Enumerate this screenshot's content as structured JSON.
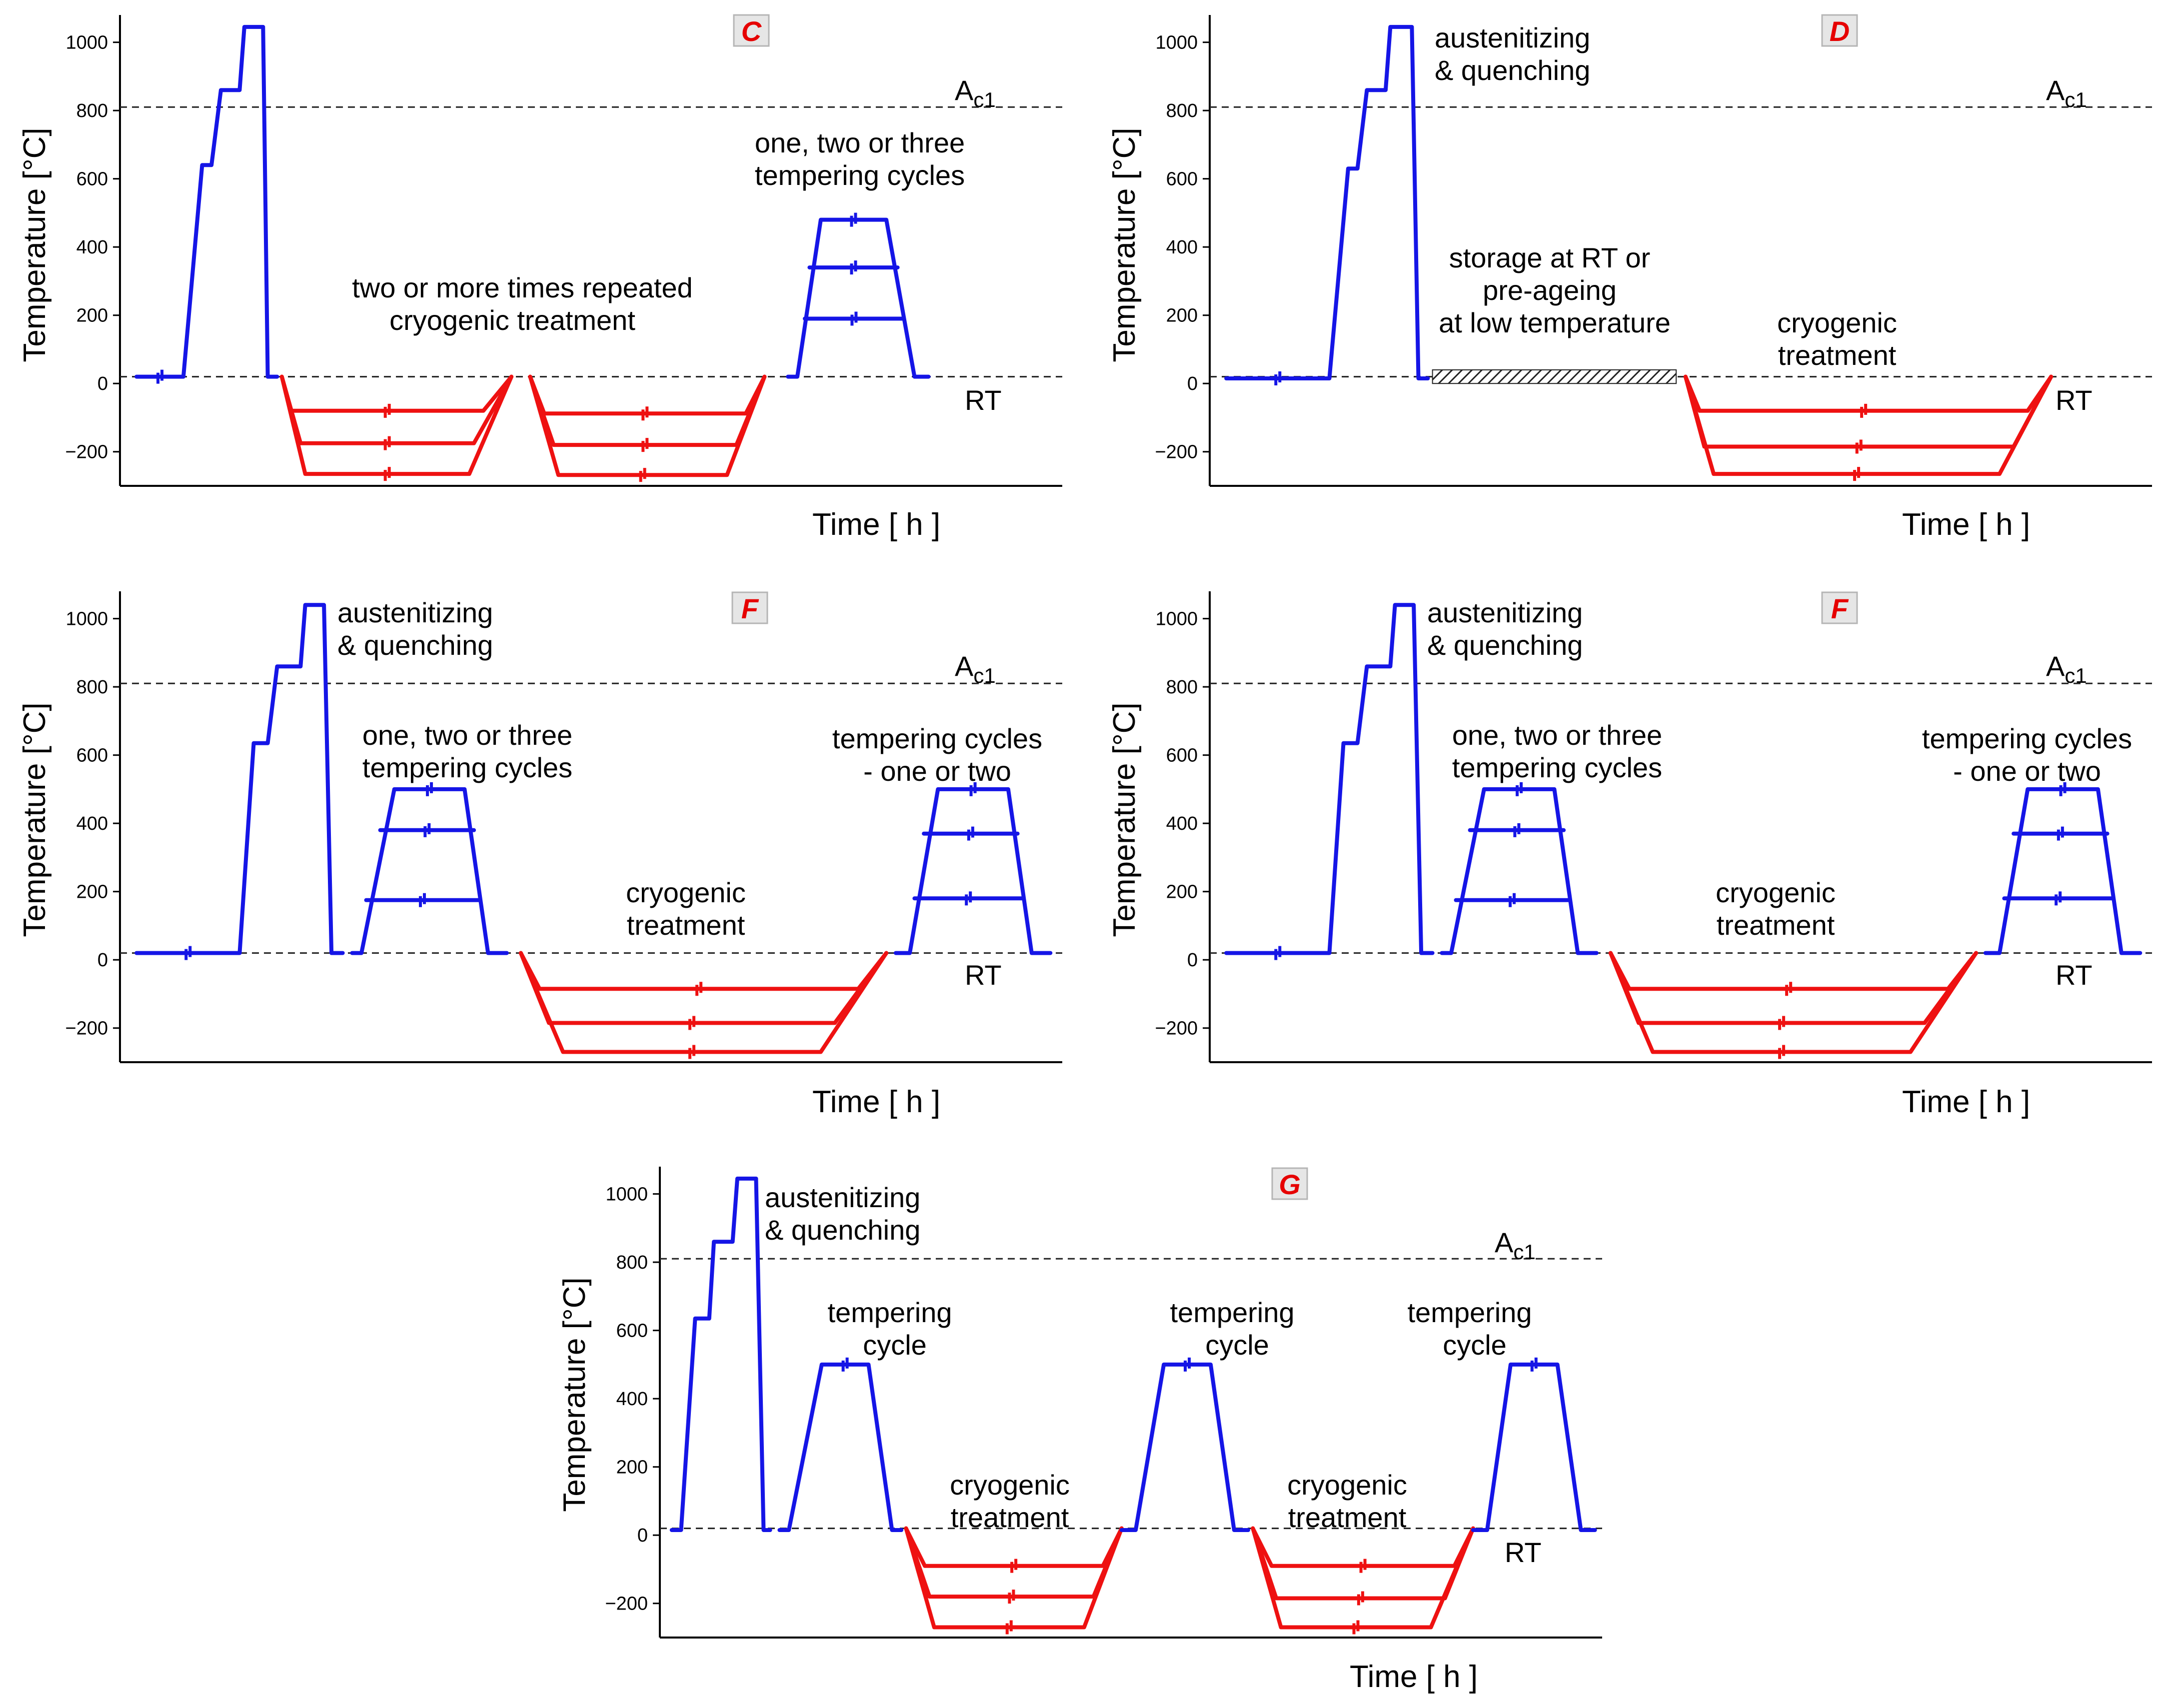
{
  "figure": {
    "colors": {
      "heating": "#1515e6",
      "cryogenic": "#ee1111",
      "reference_line": "#222222",
      "axis": "#000000",
      "badge_fill": "#e6e6e6",
      "badge_text": "#e60000"
    },
    "panels": [
      {
        "id": "C",
        "badge": "C",
        "ylabel": "Temperature   [°C]",
        "xlabel": "Time    [ h ]",
        "ac1_prefix": "A",
        "ac1_sub": "c1",
        "rt_label": "RT",
        "annotations": [
          "one, two or three",
          "tempering cycles",
          "two or more times repeated",
          "cryogenic treatment"
        ]
      },
      {
        "id": "D",
        "badge": "D",
        "ylabel": "Temperature   [°C]",
        "xlabel": "Time    [ h ]",
        "ac1_prefix": "A",
        "ac1_sub": "c1",
        "rt_label": "RT",
        "annotations": [
          "austenitizing",
          "& quenching",
          "storage at RT or",
          "pre-ageing",
          "at low temperature",
          "cryogenic",
          "treatment"
        ]
      },
      {
        "id": "F1",
        "badge": "F",
        "ylabel": "Temperature   [°C]",
        "xlabel": "Time    [ h ]",
        "ac1_prefix": "A",
        "ac1_sub": "c1",
        "rt_label": "RT",
        "annotations": [
          "austenitizing",
          "& quenching",
          "one, two or three",
          "tempering cycles",
          "tempering cycles",
          "- one or two",
          "cryogenic",
          "treatment"
        ]
      },
      {
        "id": "F2",
        "badge": "F",
        "ylabel": "Temperature   [°C]",
        "xlabel": "Time    [ h ]",
        "ac1_prefix": "A",
        "ac1_sub": "c1",
        "rt_label": "RT",
        "annotations": [
          "austenitizing",
          "& quenching",
          "one, two or three",
          "tempering cycles",
          "tempering cycles",
          "- one or two",
          "cryogenic",
          "treatment"
        ]
      },
      {
        "id": "G",
        "badge": "G",
        "ylabel": "Temperature   [°C]",
        "xlabel": "Time    [ h ]",
        "ac1_prefix": "A",
        "ac1_sub": "c1",
        "rt_label": "RT",
        "annotations": [
          "austenitizing",
          "& quenching",
          "tempering",
          "cycle",
          "tempering",
          "cycle",
          "tempering",
          "cycle",
          "cryogenic",
          "treatment",
          "cryogenic",
          "treatment"
        ]
      }
    ]
  },
  "chart_data": [
    {
      "type": "line",
      "panel": "C",
      "title": "C",
      "xlabel": "Time [ h ]",
      "ylabel": "Temperature [°C]",
      "ylim": [
        -300,
        1080
      ],
      "yticks": [
        -200,
        0,
        200,
        400,
        600,
        800,
        1000
      ],
      "xlim": [
        0,
        100
      ],
      "reference_lines": [
        {
          "label": "Ac1",
          "y": 810
        },
        {
          "label": "RT",
          "y": 20
        }
      ],
      "series": [
        {
          "name": "austenitizing & quenching",
          "color": "heating",
          "x": [
            1.5,
            6.5,
            8.5,
            9.5,
            10.5,
            11,
            12.5,
            13,
            13.3,
            15,
            15.5,
            16.5
          ],
          "y": [
            20,
            20,
            640,
            640,
            860,
            860,
            860,
            1045,
            1045,
            1045,
            20,
            20
          ]
        },
        {
          "name": "cryogenic cycle 1, -80",
          "color": "cryogenic",
          "x": [
            17,
            18,
            38.5,
            41.5
          ],
          "y": [
            20,
            -80,
            -80,
            20
          ]
        },
        {
          "name": "cryogenic cycle 1, -175",
          "color": "cryogenic",
          "x": [
            17,
            19,
            37.5,
            41.5
          ],
          "y": [
            20,
            -175,
            -175,
            20
          ]
        },
        {
          "name": "cryogenic cycle 1, -265",
          "color": "cryogenic",
          "x": [
            17,
            19.5,
            37,
            41.5
          ],
          "y": [
            20,
            -265,
            -265,
            20
          ]
        },
        {
          "name": "cryogenic cycle 2, -88",
          "color": "cryogenic",
          "x": [
            43.5,
            45,
            66.5,
            68.5
          ],
          "y": [
            20,
            -88,
            -88,
            20
          ]
        },
        {
          "name": "cryogenic cycle 2, -180",
          "color": "cryogenic",
          "x": [
            43.5,
            46,
            65.5,
            68.5
          ],
          "y": [
            20,
            -180,
            -180,
            20
          ]
        },
        {
          "name": "cryogenic cycle 2, -268",
          "color": "cryogenic",
          "x": [
            43.5,
            46.5,
            64.5,
            68.5
          ],
          "y": [
            20,
            -268,
            -268,
            20
          ]
        },
        {
          "name": "tempering ~480",
          "color": "heating",
          "x": [
            71,
            72,
            74.5,
            81.5,
            84.5,
            86
          ],
          "y": [
            20,
            20,
            480,
            480,
            20,
            20
          ]
        },
        {
          "name": "tempering ~340",
          "color": "heating",
          "x": [
            73.3,
            82.7
          ],
          "y": [
            340,
            340
          ]
        },
        {
          "name": "tempering ~190",
          "color": "heating",
          "x": [
            72.8,
            83.3
          ],
          "y": [
            190,
            190
          ]
        }
      ]
    },
    {
      "type": "line",
      "panel": "D",
      "title": "D",
      "xlabel": "Time [ h ]",
      "ylabel": "Temperature [°C]",
      "ylim": [
        -300,
        1080
      ],
      "yticks": [
        -200,
        0,
        200,
        400,
        600,
        800,
        1000
      ],
      "xlim": [
        0,
        100
      ],
      "reference_lines": [
        {
          "label": "Ac1",
          "y": 810
        },
        {
          "label": "RT",
          "y": 20
        }
      ],
      "hatched_region": {
        "label": "storage at RT or pre-ageing at low temperature",
        "x": [
          23.5,
          49.5
        ],
        "y": [
          0,
          40
        ]
      },
      "series": [
        {
          "name": "austenitizing & quenching",
          "color": "heating",
          "x": [
            1.5,
            12.5,
            14.5,
            15.5,
            16.5,
            17,
            18.5,
            19,
            19.3,
            21.3,
            22,
            23
          ],
          "y": [
            15,
            15,
            630,
            630,
            860,
            860,
            860,
            1045,
            1045,
            1045,
            15,
            15
          ]
        },
        {
          "name": "cryogenic -80",
          "color": "cryogenic",
          "x": [
            50.5,
            52,
            87,
            89.5
          ],
          "y": [
            20,
            -80,
            -80,
            20
          ]
        },
        {
          "name": "cryogenic -185",
          "color": "cryogenic",
          "x": [
            50.5,
            52.5,
            85.5,
            89.5
          ],
          "y": [
            20,
            -185,
            -185,
            20
          ]
        },
        {
          "name": "cryogenic -265",
          "color": "cryogenic",
          "x": [
            50.5,
            53.5,
            84,
            89.5
          ],
          "y": [
            20,
            -265,
            -265,
            20
          ]
        }
      ]
    },
    {
      "type": "line",
      "panel": "F1",
      "title": "F",
      "xlabel": "Time [ h ]",
      "ylabel": "Temperature [°C]",
      "ylim": [
        -300,
        1080
      ],
      "yticks": [
        -200,
        0,
        200,
        400,
        600,
        800,
        1000
      ],
      "xlim": [
        0,
        100
      ],
      "reference_lines": [
        {
          "label": "Ac1",
          "y": 810
        },
        {
          "label": "RT",
          "y": 20
        }
      ],
      "series": [
        {
          "name": "austenitizing & quenching",
          "color": "heating",
          "x": [
            1.5,
            12.5,
            14,
            15.5,
            16.5,
            17.5,
            19,
            19.5,
            19.8,
            21.5,
            22.3,
            23.5
          ],
          "y": [
            20,
            20,
            635,
            635,
            860,
            860,
            860,
            1040,
            1040,
            1040,
            20,
            20
          ]
        },
        {
          "name": "tempering ~500",
          "color": "heating",
          "x": [
            24.5,
            25.5,
            29,
            36.5,
            39,
            41
          ],
          "y": [
            20,
            20,
            500,
            500,
            20,
            20
          ]
        },
        {
          "name": "tempering ~380",
          "color": "heating",
          "x": [
            27.5,
            37.5
          ],
          "y": [
            380,
            380
          ]
        },
        {
          "name": "tempering ~175",
          "color": "heating",
          "x": [
            26,
            38
          ],
          "y": [
            175,
            175
          ]
        },
        {
          "name": "cryogenic -85",
          "color": "cryogenic",
          "x": [
            42.5,
            44.5,
            78.5,
            81.5
          ],
          "y": [
            20,
            -85,
            -85,
            20
          ]
        },
        {
          "name": "cryogenic -185",
          "color": "cryogenic",
          "x": [
            42.5,
            45.5,
            76,
            81.5
          ],
          "y": [
            20,
            -185,
            -185,
            20
          ]
        },
        {
          "name": "cryogenic -270",
          "color": "cryogenic",
          "x": [
            42.5,
            47,
            74.5,
            81.5
          ],
          "y": [
            20,
            -270,
            -270,
            20
          ]
        },
        {
          "name": "tempering ~500 (final)",
          "color": "heating",
          "x": [
            82.5,
            84,
            87,
            94.5,
            97,
            99
          ],
          "y": [
            20,
            20,
            500,
            500,
            20,
            20
          ]
        },
        {
          "name": "tempering ~370 (final)",
          "color": "heating",
          "x": [
            85.5,
            95.5
          ],
          "y": [
            370,
            370
          ]
        },
        {
          "name": "tempering ~180 (final)",
          "color": "heating",
          "x": [
            84.5,
            96
          ],
          "y": [
            180,
            180
          ]
        }
      ]
    },
    {
      "type": "line",
      "panel": "F2",
      "title": "F",
      "xlabel": "Time [ h ]",
      "ylabel": "Temperature [°C]",
      "ylim": [
        -300,
        1080
      ],
      "yticks": [
        -200,
        0,
        200,
        400,
        600,
        800,
        1000
      ],
      "xlim": [
        0,
        100
      ],
      "reference_lines": [
        {
          "label": "Ac1",
          "y": 810
        },
        {
          "label": "RT",
          "y": 20
        }
      ],
      "series": [
        {
          "name": "austenitizing & quenching",
          "color": "heating",
          "x": [
            1.5,
            12.5,
            14,
            15.5,
            16.5,
            17.5,
            19,
            19.5,
            19.8,
            21.5,
            22.3,
            23.5
          ],
          "y": [
            20,
            20,
            635,
            635,
            860,
            860,
            860,
            1040,
            1040,
            1040,
            20,
            20
          ]
        },
        {
          "name": "tempering ~500",
          "color": "heating",
          "x": [
            24.5,
            25.5,
            29,
            36.5,
            39,
            41
          ],
          "y": [
            20,
            20,
            500,
            500,
            20,
            20
          ]
        },
        {
          "name": "tempering ~380",
          "color": "heating",
          "x": [
            27.5,
            37.5
          ],
          "y": [
            380,
            380
          ]
        },
        {
          "name": "tempering ~175",
          "color": "heating",
          "x": [
            26,
            38
          ],
          "y": [
            175,
            175
          ]
        },
        {
          "name": "cryogenic -85",
          "color": "cryogenic",
          "x": [
            42.5,
            44.5,
            78.5,
            81.5
          ],
          "y": [
            20,
            -85,
            -85,
            20
          ]
        },
        {
          "name": "cryogenic -185",
          "color": "cryogenic",
          "x": [
            42.5,
            45.5,
            76,
            81.5
          ],
          "y": [
            20,
            -185,
            -185,
            20
          ]
        },
        {
          "name": "cryogenic -270",
          "color": "cryogenic",
          "x": [
            42.5,
            47,
            74.5,
            81.5
          ],
          "y": [
            20,
            -270,
            -270,
            20
          ]
        },
        {
          "name": "tempering ~500 (final)",
          "color": "heating",
          "x": [
            82.5,
            84,
            87,
            94.5,
            97,
            99
          ],
          "y": [
            20,
            20,
            500,
            500,
            20,
            20
          ]
        },
        {
          "name": "tempering ~370 (final)",
          "color": "heating",
          "x": [
            85.5,
            95.5
          ],
          "y": [
            370,
            370
          ]
        },
        {
          "name": "tempering ~180 (final)",
          "color": "heating",
          "x": [
            84.5,
            96
          ],
          "y": [
            180,
            180
          ]
        }
      ]
    },
    {
      "type": "line",
      "panel": "G",
      "title": "G",
      "xlabel": "Time [ h ]",
      "ylabel": "Temperature [°C]",
      "ylim": [
        -300,
        1080
      ],
      "yticks": [
        -200,
        0,
        200,
        400,
        600,
        800,
        1000
      ],
      "xlim": [
        0,
        100
      ],
      "reference_lines": [
        {
          "label": "Ac1",
          "y": 810
        },
        {
          "label": "RT",
          "y": 20
        }
      ],
      "series": [
        {
          "name": "austenitizing & quenching",
          "color": "heating",
          "x": [
            1,
            2,
            3.5,
            5,
            5.5,
            6.5,
            7.5,
            8,
            8.5,
            10,
            10.8,
            11.5
          ],
          "y": [
            15,
            15,
            635,
            635,
            860,
            860,
            860,
            1045,
            1045,
            1045,
            15,
            15
          ]
        },
        {
          "name": "tempering 1",
          "color": "heating",
          "x": [
            12.5,
            13.5,
            17,
            22,
            24.5,
            25.5
          ],
          "y": [
            15,
            15,
            500,
            500,
            15,
            15
          ]
        },
        {
          "name": "cryogenic 1 -90",
          "color": "cryogenic",
          "x": [
            26,
            28,
            47,
            49
          ],
          "y": [
            20,
            -90,
            -90,
            20
          ]
        },
        {
          "name": "cryogenic 1 -180",
          "color": "cryogenic",
          "x": [
            26,
            28.5,
            46,
            49
          ],
          "y": [
            20,
            -180,
            -180,
            20
          ]
        },
        {
          "name": "cryogenic 1 -270",
          "color": "cryogenic",
          "x": [
            26,
            29,
            45,
            49
          ],
          "y": [
            20,
            -270,
            -270,
            20
          ]
        },
        {
          "name": "tempering 2",
          "color": "heating",
          "x": [
            49,
            50.5,
            53.5,
            58.5,
            61,
            62.5
          ],
          "y": [
            15,
            15,
            500,
            500,
            15,
            15
          ]
        },
        {
          "name": "cryogenic 2 -90",
          "color": "cryogenic",
          "x": [
            63,
            65,
            84.5,
            86.5
          ],
          "y": [
            20,
            -90,
            -90,
            20
          ]
        },
        {
          "name": "cryogenic 2 -185",
          "color": "cryogenic",
          "x": [
            63,
            65.5,
            83.5,
            86.5
          ],
          "y": [
            20,
            -185,
            -185,
            20
          ]
        },
        {
          "name": "cryogenic 2 -270",
          "color": "cryogenic",
          "x": [
            63,
            66,
            82,
            86.5
          ],
          "y": [
            20,
            -270,
            -270,
            20
          ]
        },
        {
          "name": "tempering 3",
          "color": "heating",
          "x": [
            86.5,
            88,
            90.5,
            95.5,
            98,
            99.5
          ],
          "y": [
            15,
            15,
            500,
            500,
            15,
            15
          ]
        }
      ]
    }
  ]
}
